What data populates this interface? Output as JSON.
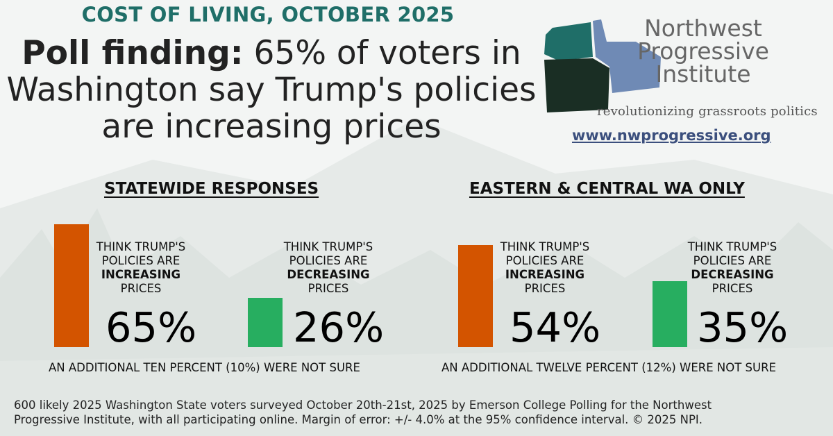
{
  "header": {
    "kicker": "COST OF LIVING, OCTOBER 2025",
    "headline_bold": "Poll finding:",
    "headline_rest": " 65% of voters in Washington say Trump's policies are increasing prices"
  },
  "logo": {
    "org_line1": "Northwest",
    "org_line2": "Progressive",
    "org_line3": "Institute",
    "tagline": "revolutionizing grassroots politics",
    "website": "www.nwprogressive.org",
    "colors": {
      "washington": "#1f6e68",
      "oregon": "#1a2e24",
      "idaho": "#6f8ab5"
    }
  },
  "chart_data": [
    {
      "type": "bar",
      "title": "STATEWIDE RESPONSES",
      "unit": "%",
      "categories": [
        {
          "lines": [
            "THINK TRUMP'S",
            "POLICIES ARE",
            "INCREASING",
            "PRICES"
          ],
          "emphasis": "INCREASING",
          "value": 65,
          "label": "65%",
          "color": "#d35400"
        },
        {
          "lines": [
            "THINK TRUMP'S",
            "POLICIES ARE",
            "DECREASING",
            "PRICES"
          ],
          "emphasis": "DECREASING",
          "value": 26,
          "label": "26%",
          "color": "#27ae60"
        }
      ],
      "note_prefix": "AN ADDITIONAL TEN PERCENT (10%) WERE ",
      "note_emphasis": "NOT SURE",
      "not_sure": 10
    },
    {
      "type": "bar",
      "title": "EASTERN & CENTRAL WA ONLY",
      "unit": "%",
      "categories": [
        {
          "lines": [
            "THINK TRUMP'S",
            "POLICIES ARE",
            "INCREASING",
            "PRICES"
          ],
          "emphasis": "INCREASING",
          "value": 54,
          "label": "54%",
          "color": "#d35400"
        },
        {
          "lines": [
            "THINK TRUMP'S",
            "POLICIES ARE",
            "DECREASING",
            "PRICES"
          ],
          "emphasis": "DECREASING",
          "value": 35,
          "label": "35%",
          "color": "#27ae60"
        }
      ],
      "note_prefix": "AN ADDITIONAL TWELVE PERCENT (12%) WERE ",
      "note_emphasis": "NOT SURE",
      "not_sure": 12
    }
  ],
  "footer": {
    "line1": "600 likely 2025 Washington State voters surveyed October 20th-21st, 2025 by Emerson College Polling for the Northwest",
    "line2": "Progressive Institute, with all participating online. Margin of error: +/- 4.0% at the 95% confidence interval. © 2025 NPI."
  }
}
